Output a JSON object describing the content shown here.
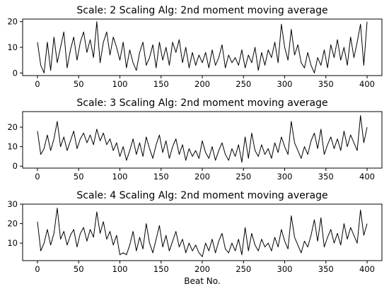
{
  "chart_data": [
    {
      "type": "line",
      "title": "Scale: 2 Scaling Alg: 2nd moment moving average",
      "xlabel": "",
      "ylabel": "",
      "xlim": [
        -18,
        418
      ],
      "ylim": [
        -1,
        21
      ],
      "xticks": [
        0,
        50,
        100,
        150,
        200,
        250,
        300,
        350,
        400
      ],
      "yticks": [
        0,
        10,
        20
      ],
      "series": [
        {
          "color": "#000000",
          "x": [
            0,
            4,
            8,
            12,
            16,
            20,
            24,
            28,
            32,
            36,
            40,
            44,
            48,
            52,
            56,
            60,
            64,
            68,
            72,
            76,
            80,
            84,
            88,
            92,
            96,
            100,
            104,
            108,
            112,
            116,
            120,
            124,
            128,
            132,
            136,
            140,
            144,
            148,
            152,
            156,
            160,
            164,
            168,
            172,
            176,
            180,
            184,
            188,
            192,
            196,
            200,
            204,
            208,
            212,
            216,
            220,
            224,
            228,
            232,
            236,
            240,
            244,
            248,
            252,
            256,
            260,
            264,
            268,
            272,
            276,
            280,
            284,
            288,
            292,
            296,
            300,
            304,
            308,
            312,
            316,
            320,
            324,
            328,
            332,
            336,
            340,
            344,
            348,
            352,
            356,
            360,
            364,
            368,
            372,
            376,
            380,
            384,
            388,
            392,
            396,
            400
          ],
          "y": [
            12,
            3,
            0,
            12,
            1,
            14,
            4,
            10,
            16,
            2,
            9,
            14,
            5,
            12,
            16,
            8,
            13,
            6,
            20,
            4,
            12,
            16,
            7,
            14,
            10,
            5,
            12,
            2,
            9,
            4,
            1,
            8,
            12,
            3,
            6,
            11,
            2,
            12,
            5,
            10,
            3,
            12,
            8,
            13,
            4,
            10,
            2,
            8,
            3,
            7,
            4,
            8,
            2,
            9,
            3,
            6,
            11,
            2,
            7,
            4,
            6,
            3,
            9,
            2,
            7,
            4,
            10,
            1,
            8,
            3,
            9,
            6,
            12,
            4,
            19,
            10,
            5,
            17,
            7,
            11,
            4,
            2,
            8,
            3,
            0,
            6,
            3,
            9,
            2,
            11,
            6,
            13,
            5,
            10,
            3,
            14,
            6,
            12,
            19,
            3,
            20
          ]
        }
      ]
    },
    {
      "type": "line",
      "title": "Scale: 3 Scaling Alg: 2nd moment moving average",
      "xlabel": "",
      "ylabel": "",
      "xlim": [
        -18,
        418
      ],
      "ylim": [
        -1,
        28
      ],
      "xticks": [
        0,
        50,
        100,
        150,
        200,
        250,
        300,
        350,
        400
      ],
      "yticks": [
        0,
        10,
        20
      ],
      "series": [
        {
          "color": "#000000",
          "x": [
            0,
            4,
            8,
            12,
            16,
            20,
            24,
            28,
            32,
            36,
            40,
            44,
            48,
            52,
            56,
            60,
            64,
            68,
            72,
            76,
            80,
            84,
            88,
            92,
            96,
            100,
            104,
            108,
            112,
            116,
            120,
            124,
            128,
            132,
            136,
            140,
            144,
            148,
            152,
            156,
            160,
            164,
            168,
            172,
            176,
            180,
            184,
            188,
            192,
            196,
            200,
            204,
            208,
            212,
            216,
            220,
            224,
            228,
            232,
            236,
            240,
            244,
            248,
            252,
            256,
            260,
            264,
            268,
            272,
            276,
            280,
            284,
            288,
            292,
            296,
            300,
            304,
            308,
            312,
            316,
            320,
            324,
            328,
            332,
            336,
            340,
            344,
            348,
            352,
            356,
            360,
            364,
            368,
            372,
            376,
            380,
            384,
            388,
            392,
            396,
            400
          ],
          "y": [
            18,
            6,
            9,
            16,
            8,
            14,
            23,
            10,
            15,
            8,
            13,
            18,
            9,
            14,
            17,
            12,
            16,
            11,
            19,
            13,
            17,
            11,
            14,
            8,
            12,
            5,
            10,
            3,
            8,
            14,
            6,
            12,
            5,
            15,
            9,
            4,
            11,
            16,
            7,
            13,
            4,
            10,
            14,
            6,
            11,
            3,
            9,
            5,
            8,
            4,
            13,
            7,
            4,
            10,
            3,
            8,
            12,
            6,
            3,
            9,
            5,
            11,
            2,
            15,
            4,
            17,
            8,
            5,
            11,
            6,
            9,
            4,
            12,
            7,
            15,
            10,
            6,
            23,
            12,
            8,
            4,
            10,
            6,
            13,
            17,
            9,
            19,
            6,
            11,
            15,
            9,
            14,
            8,
            18,
            10,
            16,
            12,
            8,
            26,
            12,
            20
          ]
        }
      ]
    },
    {
      "type": "line",
      "title": "Scale: 4 Scaling Alg: 2nd moment moving average",
      "xlabel": "Beat No.",
      "ylabel": "",
      "xlim": [
        -18,
        418
      ],
      "ylim": [
        1,
        30
      ],
      "xticks": [
        0,
        50,
        100,
        150,
        200,
        250,
        300,
        350,
        400
      ],
      "yticks": [
        10,
        20,
        30
      ],
      "series": [
        {
          "color": "#000000",
          "x": [
            0,
            4,
            8,
            12,
            16,
            20,
            24,
            28,
            32,
            36,
            40,
            44,
            48,
            52,
            56,
            60,
            64,
            68,
            72,
            76,
            80,
            84,
            88,
            92,
            96,
            100,
            104,
            108,
            112,
            116,
            120,
            124,
            128,
            132,
            136,
            140,
            144,
            148,
            152,
            156,
            160,
            164,
            168,
            172,
            176,
            180,
            184,
            188,
            192,
            196,
            200,
            204,
            208,
            212,
            216,
            220,
            224,
            228,
            232,
            236,
            240,
            244,
            248,
            252,
            256,
            260,
            264,
            268,
            272,
            276,
            280,
            284,
            288,
            292,
            296,
            300,
            304,
            308,
            312,
            316,
            320,
            324,
            328,
            332,
            336,
            340,
            344,
            348,
            352,
            356,
            360,
            364,
            368,
            372,
            376,
            380,
            384,
            388,
            392,
            396,
            400
          ],
          "y": [
            21,
            6,
            10,
            17,
            9,
            15,
            28,
            12,
            16,
            9,
            14,
            17,
            8,
            15,
            18,
            11,
            17,
            13,
            26,
            15,
            21,
            12,
            16,
            9,
            14,
            4,
            5,
            4,
            9,
            16,
            6,
            13,
            7,
            20,
            10,
            5,
            12,
            19,
            8,
            14,
            6,
            11,
            16,
            8,
            12,
            5,
            10,
            6,
            9,
            5,
            3,
            10,
            6,
            12,
            5,
            11,
            15,
            7,
            5,
            10,
            6,
            12,
            4,
            18,
            6,
            15,
            9,
            6,
            12,
            8,
            10,
            6,
            13,
            8,
            17,
            11,
            7,
            24,
            13,
            9,
            5,
            11,
            8,
            14,
            22,
            11,
            23,
            8,
            13,
            17,
            10,
            15,
            9,
            20,
            12,
            18,
            14,
            10,
            27,
            14,
            20
          ]
        }
      ]
    }
  ]
}
